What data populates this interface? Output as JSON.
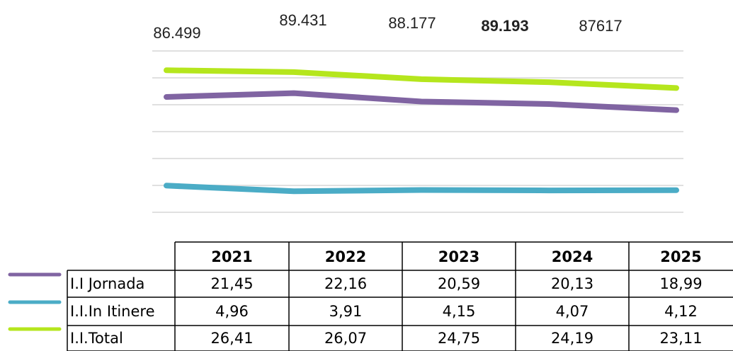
{
  "chart_data": {
    "type": "line",
    "annotations": [
      "86.499",
      "89.431",
      "88.177",
      "89.193",
      "87617"
    ],
    "categories": [
      "2021",
      "2022",
      "2023",
      "2024",
      "2025"
    ],
    "series": [
      {
        "name": "I.I Jornada",
        "color": "#8064a2",
        "values": [
          21.45,
          22.16,
          20.59,
          20.13,
          18.99
        ],
        "value_labels": [
          "21,45",
          "22,16",
          "20,59",
          "20,13",
          "18,99"
        ]
      },
      {
        "name": "I.I.In Itinere",
        "color": "#4bacc6",
        "values": [
          4.96,
          3.91,
          4.15,
          4.07,
          4.12
        ],
        "value_labels": [
          "4,96",
          "3,91",
          "4,15",
          "4,07",
          "4,12"
        ]
      },
      {
        "name": "I.I.Total",
        "color": "#b5e61d",
        "values": [
          26.41,
          26.07,
          24.75,
          24.19,
          23.11
        ],
        "value_labels": [
          "26,41",
          "26,07",
          "24,75",
          "24,19",
          "23,11"
        ]
      }
    ],
    "ylim": [
      0,
      30
    ],
    "yticks": [
      0,
      5,
      10,
      15,
      20,
      25,
      30
    ],
    "grid": true
  }
}
